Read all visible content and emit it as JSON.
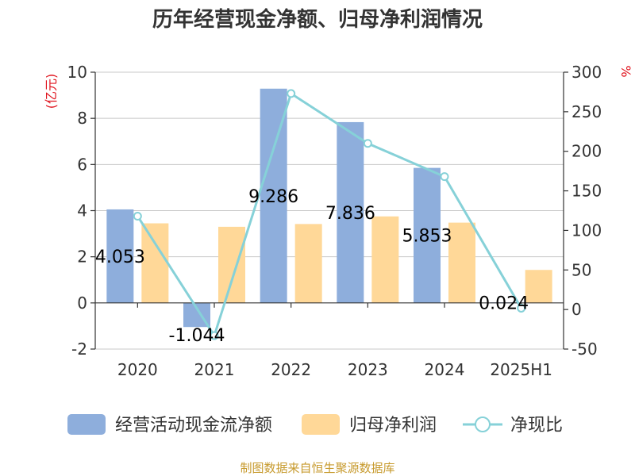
{
  "chart_data": {
    "type": "bar",
    "title": "历年经营现金净额、归母净利润情况",
    "categories": [
      "2020",
      "2021",
      "2022",
      "2023",
      "2024",
      "2025H1"
    ],
    "series": [
      {
        "name": "经营活动现金流净额",
        "type": "bar",
        "axis": "left",
        "color": "#8eaedc",
        "values": [
          4.053,
          -1.044,
          9.286,
          7.836,
          5.853,
          0.024
        ]
      },
      {
        "name": "归母净利润",
        "type": "bar",
        "axis": "left",
        "color": "#ffd898",
        "values": [
          3.45,
          3.3,
          3.42,
          3.75,
          3.48,
          1.43
        ]
      },
      {
        "name": "净现比",
        "type": "line",
        "axis": "right",
        "color": "#86d1d8",
        "values": [
          118,
          -33,
          273,
          210,
          168,
          1.7
        ]
      }
    ],
    "data_labels": [
      "4.053",
      "-1.044",
      "9.286",
      "7.836",
      "5.853",
      "0.024"
    ],
    "y_left": {
      "unit": "(亿元)",
      "min": -2,
      "max": 10,
      "ticks": [
        -2,
        0,
        2,
        4,
        6,
        8,
        10
      ]
    },
    "y_right": {
      "unit": "%",
      "min": -50,
      "max": 300,
      "ticks": [
        -50,
        0,
        50,
        100,
        150,
        200,
        250,
        300
      ]
    },
    "grid": true,
    "legend_position": "bottom"
  },
  "source": "制图数据来自恒生聚源数据库"
}
